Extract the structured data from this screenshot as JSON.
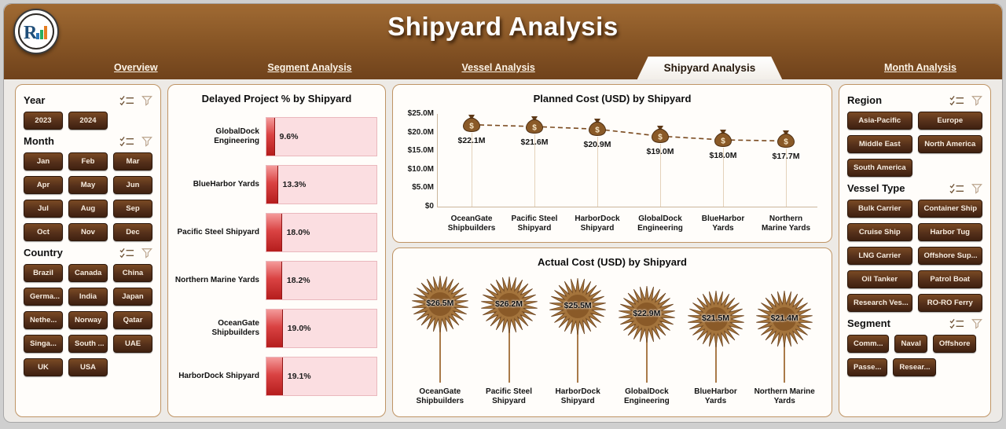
{
  "header": {
    "title": "Shipyard Analysis",
    "tabs": [
      {
        "label": "Overview",
        "active": false
      },
      {
        "label": "Segment Analysis",
        "active": false
      },
      {
        "label": "Vessel Analysis",
        "active": false
      },
      {
        "label": "Shipyard Analysis",
        "active": true
      },
      {
        "label": "Month Analysis",
        "active": false
      }
    ]
  },
  "colors": {
    "header_brown": "#8a5827",
    "button_brown": "#55301a",
    "bar_fill_red": "#c62828",
    "bar_track_pink": "#fbdee1",
    "line_brown": "#7a4a1f"
  },
  "filters": {
    "left": [
      {
        "title": "Year",
        "cols": 3,
        "items": [
          "2023",
          "2024"
        ]
      },
      {
        "title": "Month",
        "cols": 3,
        "items": [
          "Jan",
          "Feb",
          "Mar",
          "Apr",
          "May",
          "Jun",
          "Jul",
          "Aug",
          "Sep",
          "Oct",
          "Nov",
          "Dec"
        ]
      },
      {
        "title": "Country",
        "cols": 3,
        "items": [
          "Brazil",
          "Canada",
          "China",
          "Germa...",
          "India",
          "Japan",
          "Nethe...",
          "Norway",
          "Qatar",
          "Singa...",
          "South ...",
          "UAE",
          "UK",
          "USA"
        ]
      }
    ],
    "right": [
      {
        "title": "Region",
        "cols": 2,
        "items": [
          "Asia-Pacific",
          "Europe",
          "Middle East",
          "North America",
          "South America"
        ]
      },
      {
        "title": "Vessel Type",
        "cols": 2,
        "items": [
          "Bulk Carrier",
          "Container Ship",
          "Cruise Ship",
          "Harbor Tug",
          "LNG Carrier",
          "Offshore Sup...",
          "Oil Tanker",
          "Patrol Boat",
          "Research Ves...",
          "RO-RO Ferry"
        ]
      },
      {
        "title": "Segment",
        "cols": 0,
        "items": [
          "Comm...",
          "Naval",
          "Offshore",
          "Passe...",
          "Resear..."
        ]
      }
    ]
  },
  "chart_data": [
    {
      "type": "bar",
      "orientation": "horizontal",
      "title": "Delayed Project % by Shipyard",
      "categories": [
        "GlobalDock Engineering",
        "BlueHarbor Yards",
        "Pacific Steel Shipyard",
        "Northern Marine Yards",
        "OceanGate Shipbuilders",
        "HarborDock Shipyard"
      ],
      "values": [
        9.6,
        13.3,
        18.0,
        18.2,
        19.0,
        19.1
      ],
      "value_labels": [
        "9.6%",
        "13.3%",
        "18.0%",
        "18.2%",
        "19.0%",
        "19.1%"
      ],
      "xlim": [
        0,
        20
      ]
    },
    {
      "type": "line",
      "title": "Planned Cost (USD) by Shipyard",
      "marker": "money-bag",
      "line_style": "dashed",
      "categories": [
        "OceanGate Shipbuilders",
        "Pacific Steel Shipyard",
        "HarborDock Shipyard",
        "GlobalDock Engineering",
        "BlueHarbor Yards",
        "Northern Marine Yards"
      ],
      "values": [
        22.1,
        21.6,
        20.9,
        19.0,
        18.0,
        17.7
      ],
      "value_labels": [
        "$22.1M",
        "$21.6M",
        "$20.9M",
        "$19.0M",
        "$18.0M",
        "$17.7M"
      ],
      "ylim": [
        0,
        25
      ],
      "yticks": [
        {
          "label": "$25.0M",
          "value": 25
        },
        {
          "label": "$20.0M",
          "value": 20
        },
        {
          "label": "$15.0M",
          "value": 15
        },
        {
          "label": "$10.0M",
          "value": 10
        },
        {
          "label": "$5.0M",
          "value": 5
        },
        {
          "label": "$0",
          "value": 0
        }
      ]
    },
    {
      "type": "line",
      "title": "Actual Cost (USD) by Shipyard",
      "marker": "starburst",
      "categories": [
        "OceanGate Shipbuilders",
        "Pacific Steel Shipyard",
        "HarborDock Shipyard",
        "GlobalDock Engineering",
        "BlueHarbor Yards",
        "Northern Marine Yards"
      ],
      "values": [
        26.5,
        26.2,
        25.5,
        22.9,
        21.5,
        21.4
      ],
      "value_labels": [
        "$26.5M",
        "$26.2M",
        "$25.5M",
        "$22.9M",
        "$21.5M",
        "$21.4M"
      ],
      "ylim": [
        0,
        28
      ]
    }
  ]
}
